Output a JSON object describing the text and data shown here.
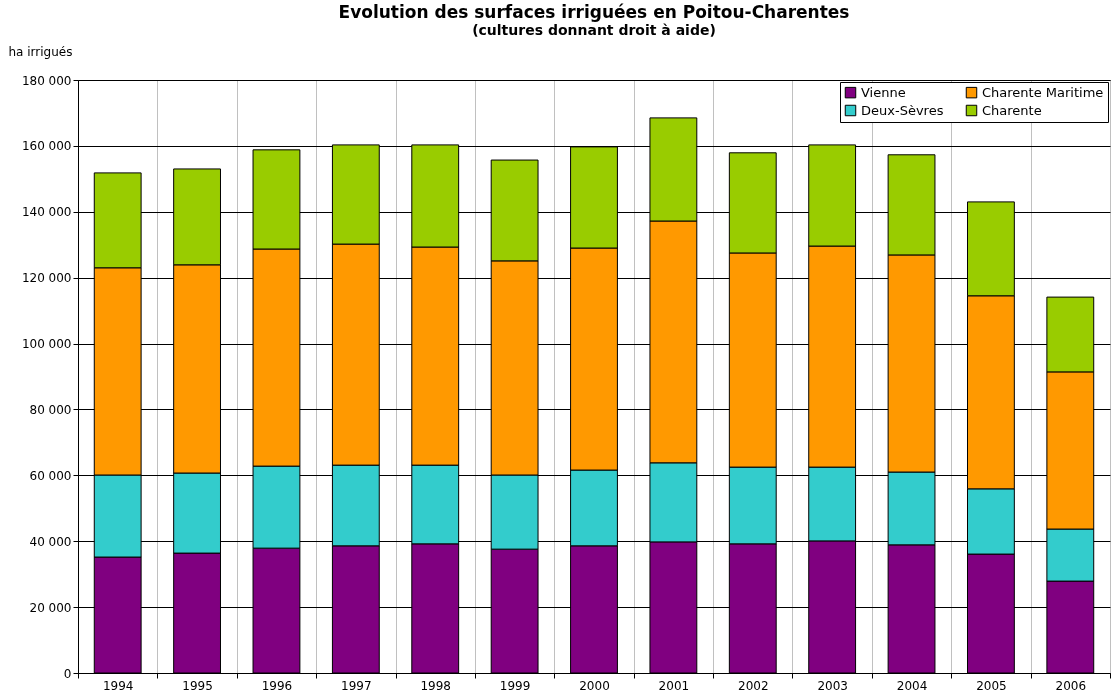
{
  "chart_data": {
    "type": "bar",
    "title": "Evolution des surfaces irriguées en Poitou-Charentes",
    "subtitle": "(cultures donnant droit à aide)",
    "ylabel": "ha irrigués",
    "stacked": true,
    "grid": true,
    "legend": "top right",
    "categories": [
      "1994",
      "1995",
      "1996",
      "1997",
      "1998",
      "1999",
      "2000",
      "2001",
      "2002",
      "2003",
      "2004",
      "2005",
      "2006"
    ],
    "ylim": [
      0,
      180000
    ],
    "yticks": [
      0,
      {
        "value": 20000,
        "label": "20 000"
      },
      {
        "value": 40000,
        "label": "40 000"
      },
      {
        "value": 60000,
        "label": "60 000"
      },
      {
        "value": 80000,
        "label": "80 000"
      },
      {
        "value": 100000,
        "label": "100 000"
      },
      {
        "value": 120000,
        "label": "120 000"
      },
      {
        "value": 140000,
        "label": "140 000"
      },
      {
        "value": 160000,
        "label": "160 000"
      },
      {
        "value": 180000,
        "label": "180 000"
      }
    ],
    "series": [
      {
        "name": "Vienne",
        "color": "#800080",
        "values": [
          35200,
          36400,
          37900,
          38600,
          39200,
          37600,
          38600,
          39800,
          39200,
          40100,
          38900,
          36100,
          27900
        ]
      },
      {
        "name": "Deux-Sèvres",
        "color": "#33cccc",
        "values": [
          24900,
          24300,
          24900,
          24500,
          23900,
          22500,
          23000,
          24000,
          23300,
          22400,
          22100,
          19800,
          15800
        ]
      },
      {
        "name": "Charente Maritime",
        "color": "#ff9900",
        "values": [
          62900,
          63200,
          65900,
          67100,
          66200,
          65000,
          67400,
          73400,
          65000,
          67100,
          65900,
          58600,
          47700
        ]
      },
      {
        "name": "Charente",
        "color": "#99cc00",
        "values": [
          28800,
          29100,
          30100,
          30100,
          31000,
          30600,
          30700,
          31300,
          30400,
          30700,
          30400,
          28500,
          22700
        ]
      }
    ]
  }
}
